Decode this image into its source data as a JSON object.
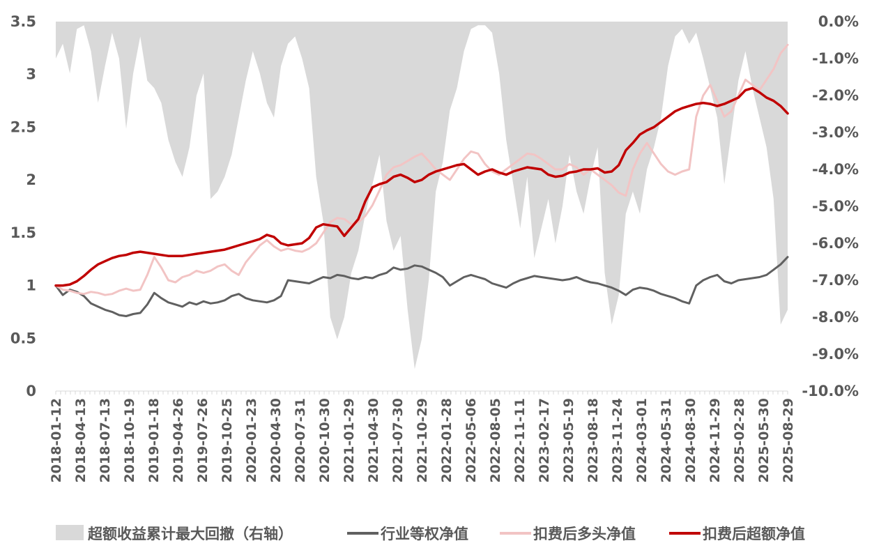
{
  "chart_data": {
    "type": "line",
    "title": "",
    "y_left": {
      "min": 0,
      "max": 3.5,
      "ticks": [
        "0",
        "0.5",
        "1",
        "1.5",
        "2",
        "2.5",
        "3",
        "3.5"
      ]
    },
    "y_right": {
      "min": -10,
      "max": 0,
      "unit": "%",
      "ticks": [
        "0.0%",
        "-1.0%",
        "-2.0%",
        "-3.0%",
        "-4.0%",
        "-5.0%",
        "-6.0%",
        "-7.0%",
        "-8.0%",
        "-9.0%",
        "-10.0%"
      ]
    },
    "x_tick_labels": [
      "2018-01-12",
      "2018-04-13",
      "2018-07-13",
      "2018-10-19",
      "2019-01-18",
      "2019-04-26",
      "2019-07-26",
      "2019-10-25",
      "2020-01-23",
      "2020-04-30",
      "2020-07-31",
      "2020-10-30",
      "2021-01-29",
      "2021-04-30",
      "2021-07-30",
      "2021-10-29",
      "2022-01-28",
      "2022-05-06",
      "2022-08-05",
      "2022-11-11",
      "2023-02-17",
      "2023-05-19",
      "2023-08-18",
      "2023-11-24",
      "2024-03-01",
      "2024-05-31",
      "2024-08-30",
      "2024-11-29",
      "2025-02-28",
      "2025-05-30",
      "2025-08-29"
    ],
    "legend": {
      "placement": "bottom"
    },
    "series": [
      {
        "name": "超额收益累计最大回撤（右轴）",
        "kind": "area",
        "axis": "right",
        "color": "#d9d9d9",
        "values": [
          -1.0,
          -0.6,
          -1.4,
          -0.2,
          -0.1,
          -0.8,
          -2.2,
          -1.2,
          -0.3,
          -1.0,
          -2.9,
          -1.4,
          -0.4,
          -1.6,
          -1.8,
          -2.2,
          -3.2,
          -3.8,
          -4.2,
          -3.4,
          -2.0,
          -1.4,
          -4.8,
          -4.6,
          -4.2,
          -3.6,
          -2.6,
          -1.6,
          -0.8,
          -1.4,
          -2.2,
          -2.6,
          -1.2,
          -0.6,
          -0.4,
          -1.0,
          -1.8,
          -4.2,
          -5.4,
          -8.0,
          -8.6,
          -8.0,
          -6.8,
          -6.2,
          -5.2,
          -4.4,
          -3.6,
          -5.4,
          -6.2,
          -5.8,
          -7.8,
          -9.4,
          -8.6,
          -7.0,
          -4.6,
          -3.8,
          -2.4,
          -1.8,
          -0.8,
          -0.2,
          -0.1,
          -0.1,
          -0.3,
          -1.4,
          -3.2,
          -4.4,
          -5.6,
          -4.2,
          -6.4,
          -5.6,
          -4.8,
          -6.0,
          -5.0,
          -3.6,
          -4.6,
          -5.2,
          -4.2,
          -3.4,
          -6.8,
          -8.2,
          -7.4,
          -5.2,
          -4.6,
          -5.2,
          -4.0,
          -3.4,
          -2.6,
          -1.2,
          -0.4,
          -0.2,
          -0.6,
          -0.3,
          -1.0,
          -1.8,
          -2.6,
          -4.4,
          -3.0,
          -1.6,
          -0.8,
          -1.8,
          -2.6,
          -3.4,
          -4.8,
          -8.2,
          -7.8
        ]
      },
      {
        "name": "行业等权净值",
        "kind": "line",
        "axis": "left",
        "color": "#606060",
        "values": [
          1.0,
          0.91,
          0.96,
          0.94,
          0.9,
          0.83,
          0.8,
          0.77,
          0.75,
          0.72,
          0.71,
          0.73,
          0.74,
          0.82,
          0.93,
          0.88,
          0.84,
          0.82,
          0.8,
          0.84,
          0.82,
          0.85,
          0.83,
          0.84,
          0.86,
          0.9,
          0.92,
          0.88,
          0.86,
          0.85,
          0.84,
          0.86,
          0.9,
          1.05,
          1.04,
          1.03,
          1.02,
          1.05,
          1.08,
          1.07,
          1.1,
          1.09,
          1.07,
          1.06,
          1.08,
          1.07,
          1.1,
          1.12,
          1.17,
          1.15,
          1.16,
          1.19,
          1.18,
          1.15,
          1.12,
          1.08,
          1.0,
          1.04,
          1.08,
          1.1,
          1.08,
          1.06,
          1.02,
          1.0,
          0.98,
          1.02,
          1.05,
          1.07,
          1.09,
          1.08,
          1.07,
          1.06,
          1.05,
          1.06,
          1.08,
          1.05,
          1.03,
          1.02,
          1.0,
          0.98,
          0.95,
          0.91,
          0.96,
          0.98,
          0.97,
          0.95,
          0.92,
          0.9,
          0.88,
          0.85,
          0.83,
          1.0,
          1.05,
          1.08,
          1.1,
          1.04,
          1.02,
          1.05,
          1.06,
          1.07,
          1.08,
          1.1,
          1.15,
          1.2,
          1.27
        ]
      },
      {
        "name": "扣费后多头净值",
        "kind": "line",
        "axis": "left",
        "color": "#f2c4c4",
        "values": [
          1.0,
          0.96,
          0.95,
          0.93,
          0.92,
          0.94,
          0.93,
          0.91,
          0.92,
          0.95,
          0.97,
          0.95,
          0.96,
          1.1,
          1.27,
          1.17,
          1.05,
          1.03,
          1.08,
          1.1,
          1.14,
          1.12,
          1.14,
          1.18,
          1.2,
          1.14,
          1.1,
          1.22,
          1.3,
          1.38,
          1.43,
          1.37,
          1.33,
          1.35,
          1.33,
          1.32,
          1.35,
          1.4,
          1.5,
          1.6,
          1.64,
          1.63,
          1.58,
          1.6,
          1.66,
          1.76,
          1.9,
          2.05,
          2.12,
          2.14,
          2.18,
          2.22,
          2.25,
          2.18,
          2.1,
          2.05,
          2.0,
          2.1,
          2.2,
          2.27,
          2.25,
          2.15,
          2.08,
          2.05,
          2.1,
          2.15,
          2.2,
          2.25,
          2.24,
          2.2,
          2.15,
          2.1,
          2.1,
          2.15,
          2.12,
          2.05,
          2.1,
          2.05,
          2.0,
          1.95,
          1.88,
          1.85,
          2.1,
          2.25,
          2.35,
          2.25,
          2.15,
          2.08,
          2.05,
          2.08,
          2.1,
          2.6,
          2.8,
          2.9,
          2.75,
          2.6,
          2.65,
          2.8,
          2.95,
          2.9,
          2.85,
          2.95,
          3.05,
          3.2,
          3.28
        ]
      },
      {
        "name": "扣费后超额净值",
        "kind": "line",
        "axis": "left",
        "color": "#c00000",
        "values": [
          1.0,
          1.0,
          1.01,
          1.04,
          1.09,
          1.15,
          1.2,
          1.23,
          1.26,
          1.28,
          1.29,
          1.31,
          1.32,
          1.31,
          1.3,
          1.29,
          1.28,
          1.28,
          1.28,
          1.29,
          1.3,
          1.31,
          1.32,
          1.33,
          1.34,
          1.36,
          1.38,
          1.4,
          1.42,
          1.44,
          1.48,
          1.46,
          1.4,
          1.38,
          1.39,
          1.4,
          1.45,
          1.55,
          1.58,
          1.57,
          1.56,
          1.47,
          1.55,
          1.63,
          1.8,
          1.93,
          1.96,
          1.98,
          2.03,
          2.05,
          2.02,
          1.98,
          2.0,
          2.05,
          2.08,
          2.1,
          2.12,
          2.14,
          2.15,
          2.1,
          2.05,
          2.08,
          2.1,
          2.07,
          2.05,
          2.08,
          2.1,
          2.12,
          2.11,
          2.1,
          2.05,
          2.03,
          2.04,
          2.07,
          2.08,
          2.1,
          2.1,
          2.11,
          2.07,
          2.08,
          2.14,
          2.28,
          2.35,
          2.43,
          2.47,
          2.5,
          2.55,
          2.6,
          2.65,
          2.68,
          2.7,
          2.72,
          2.73,
          2.72,
          2.7,
          2.72,
          2.75,
          2.78,
          2.85,
          2.87,
          2.83,
          2.78,
          2.75,
          2.7,
          2.63
        ]
      }
    ]
  }
}
